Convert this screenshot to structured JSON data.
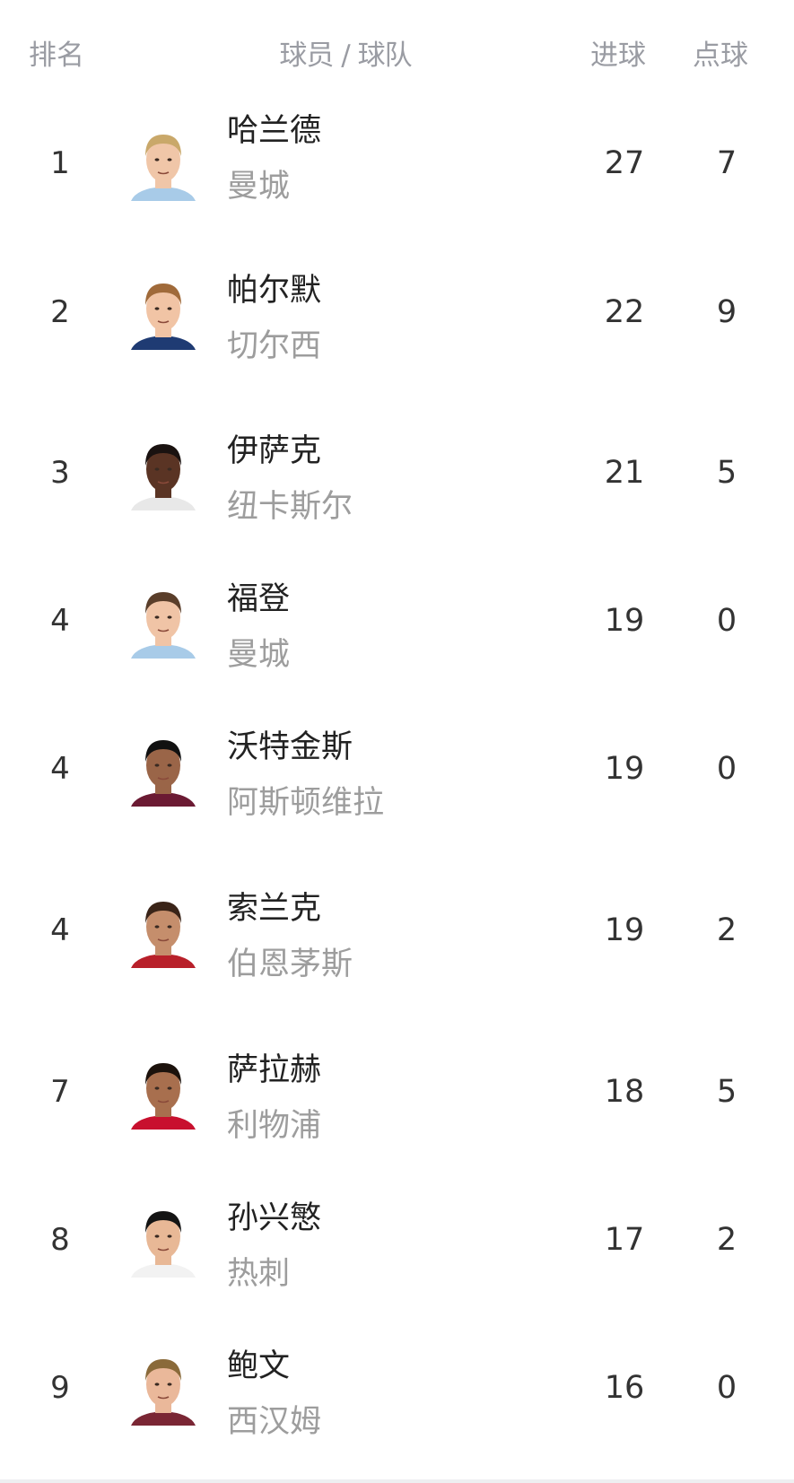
{
  "header": {
    "rank": "排名",
    "player_team": "球员 / 球队",
    "goals": "进球",
    "penalties": "点球"
  },
  "rows": [
    {
      "rank": "1",
      "name": "哈兰德",
      "team": "曼城",
      "goals": "27",
      "penalties": "7",
      "hair": "#c9a86a",
      "skin": "#f0c6a8",
      "shirt": "#a8cbe8"
    },
    {
      "rank": "2",
      "name": "帕尔默",
      "team": "切尔西",
      "goals": "22",
      "penalties": "9",
      "hair": "#a06a3a",
      "skin": "#f1c4a5",
      "shirt": "#1f3b73"
    },
    {
      "rank": "3",
      "name": "伊萨克",
      "team": "纽卡斯尔",
      "goals": "21",
      "penalties": "5",
      "hair": "#1a1210",
      "skin": "#5a3424",
      "shirt": "#e8e8e8"
    },
    {
      "rank": "4",
      "name": "福登",
      "team": "曼城",
      "goals": "19",
      "penalties": "0",
      "hair": "#5a3e2a",
      "skin": "#f0c4a6",
      "shirt": "#a8cbe8"
    },
    {
      "rank": "4",
      "name": "沃特金斯",
      "team": "阿斯顿维拉",
      "goals": "19",
      "penalties": "0",
      "hair": "#111",
      "skin": "#9a6548",
      "shirt": "#6b1a33"
    },
    {
      "rank": "4",
      "name": "索兰克",
      "team": "伯恩茅斯",
      "goals": "19",
      "penalties": "2",
      "hair": "#3a2418",
      "skin": "#c58e6c",
      "shirt": "#b8202a"
    },
    {
      "rank": "7",
      "name": "萨拉赫",
      "team": "利物浦",
      "goals": "18",
      "penalties": "5",
      "hair": "#1c120c",
      "skin": "#a86f4e",
      "shirt": "#c8102e"
    },
    {
      "rank": "8",
      "name": "孙兴慜",
      "team": "热刺",
      "goals": "17",
      "penalties": "2",
      "hair": "#141414",
      "skin": "#e8b896",
      "shirt": "#f2f2f2"
    },
    {
      "rank": "9",
      "name": "鲍文",
      "team": "西汉姆",
      "goals": "16",
      "penalties": "0",
      "hair": "#8a6a3a",
      "skin": "#eab89a",
      "shirt": "#7a2634"
    }
  ]
}
